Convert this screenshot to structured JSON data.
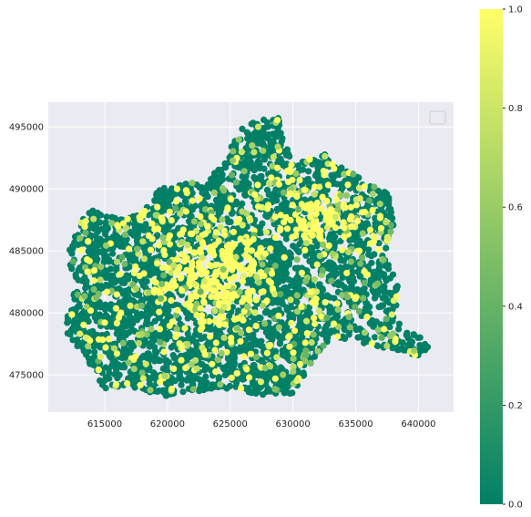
{
  "chart_data": {
    "type": "scatter",
    "title": "",
    "xlabel": "",
    "ylabel": "",
    "xlim": [
      610500,
      642800
    ],
    "ylim": [
      472000,
      497000
    ],
    "xticks": [
      615000,
      620000,
      625000,
      630000,
      635000,
      640000
    ],
    "yticks": [
      475000,
      480000,
      485000,
      490000,
      495000
    ],
    "grid": true,
    "legend": {
      "placement": "top-right",
      "entries": []
    },
    "colormap": {
      "name": "summer",
      "low_color": "#008066",
      "high_color": "#ffff66"
    },
    "colorbar": {
      "min": 0.0,
      "max": 1.0,
      "ticks": [
        0.0,
        0.2,
        0.4,
        0.6,
        0.8,
        1.0
      ],
      "tick_labels": [
        "0.0",
        "0.2",
        "0.4",
        "0.6",
        "0.8",
        "1.0"
      ]
    },
    "colors": {
      "panel_bg": "#eaeaf2",
      "grid": "#ffffff",
      "tick_text": "#262626"
    }
  }
}
